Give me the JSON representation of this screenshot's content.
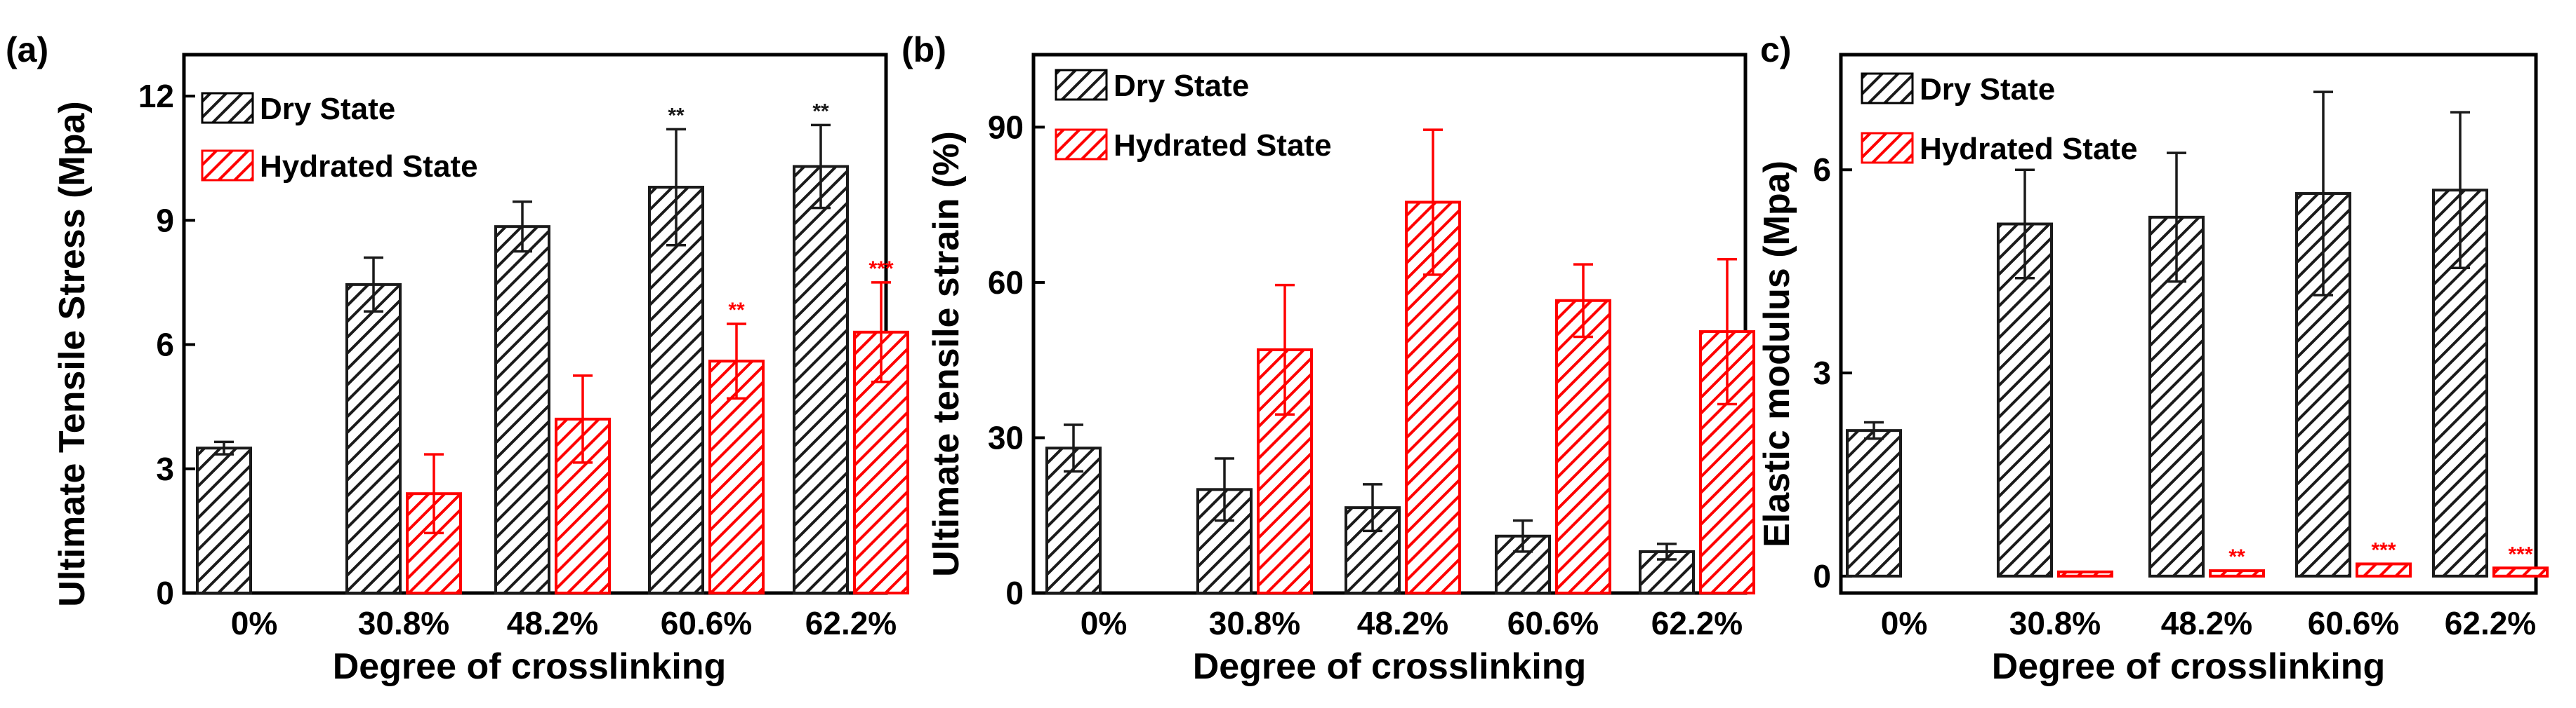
{
  "colors": {
    "dry": "#1a1a1a",
    "hydrated": "#ff0000",
    "axis": "#000000",
    "background": "#ffffff"
  },
  "chart_data": [
    {
      "type": "bar",
      "panel_label": "(a)",
      "title": "",
      "xlabel": "Degree of crosslinking",
      "ylabel": "Ultimate Tensile Stress (Mpa)",
      "categories": [
        "0%",
        "30.8%",
        "48.2%",
        "60.6%",
        "62.2%"
      ],
      "ylim": [
        0,
        13
      ],
      "yticks": [
        0,
        3,
        6,
        9,
        12
      ],
      "legend_position": "top-left",
      "series": [
        {
          "name": "Dry State",
          "color": "dry",
          "values": [
            3.5,
            7.45,
            8.85,
            9.8,
            10.3
          ],
          "errors": [
            0.15,
            0.65,
            0.6,
            1.4,
            1.0
          ],
          "sig": [
            "",
            "",
            "",
            "**",
            "**"
          ]
        },
        {
          "name": "Hydrated State",
          "color": "hydrated",
          "values": [
            null,
            2.4,
            4.2,
            5.6,
            6.3
          ],
          "errors": [
            null,
            0.95,
            1.05,
            0.9,
            1.2
          ],
          "sig": [
            "",
            "",
            "",
            "**",
            "***"
          ]
        }
      ]
    },
    {
      "type": "bar",
      "panel_label": "(b)",
      "title": "",
      "xlabel": "Degree of crosslinking",
      "ylabel": "Ultimate tensile strain (%)",
      "categories": [
        "0%",
        "30.8%",
        "48.2%",
        "60.6%",
        "62.2%"
      ],
      "ylim": [
        0,
        104
      ],
      "yticks": [
        0,
        30,
        60,
        90
      ],
      "legend_position": "top-left",
      "series": [
        {
          "name": "Dry State",
          "color": "dry",
          "values": [
            28,
            20,
            16.5,
            11,
            8
          ],
          "errors": [
            4.5,
            6,
            4.5,
            3,
            1.5
          ],
          "sig": [
            "",
            "",
            "",
            "",
            ""
          ]
        },
        {
          "name": "Hydrated State",
          "color": "hydrated",
          "values": [
            null,
            47,
            75.5,
            56.5,
            50.5
          ],
          "errors": [
            null,
            12.5,
            14,
            7,
            14
          ],
          "sig": [
            "",
            "",
            "",
            "",
            ""
          ]
        }
      ]
    },
    {
      "type": "bar",
      "panel_label": "c)",
      "title": "",
      "xlabel": "Degree of crosslinking",
      "ylabel": "Elastic modulus (Mpa)",
      "categories": [
        "0%",
        "30.8%",
        "48.2%",
        "60.6%",
        "62.2%"
      ],
      "ylim": [
        -0.25,
        7.7
      ],
      "yticks": [
        0,
        3,
        6
      ],
      "legend_position": "top-left",
      "series": [
        {
          "name": "Dry State",
          "color": "dry",
          "values": [
            2.15,
            5.2,
            5.3,
            5.65,
            5.7
          ],
          "errors": [
            0.12,
            0.8,
            0.95,
            1.5,
            1.15
          ],
          "sig": [
            "",
            "",
            "",
            "",
            ""
          ]
        },
        {
          "name": "Hydrated State",
          "color": "hydrated",
          "values": [
            null,
            0.02,
            0.08,
            0.18,
            0.12
          ],
          "errors": [
            null,
            0,
            0,
            0,
            0
          ],
          "sig": [
            "",
            "",
            "**",
            "***",
            "***"
          ]
        }
      ]
    }
  ]
}
